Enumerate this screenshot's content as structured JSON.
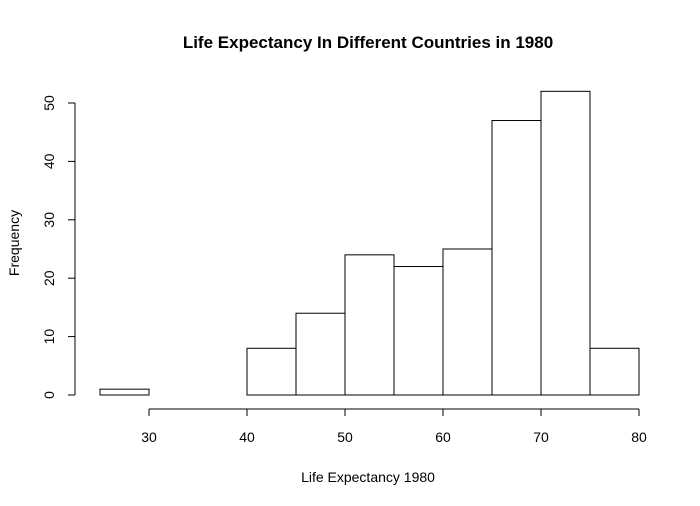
{
  "chart_data": {
    "type": "bar",
    "title": "Life Expectancy In Different Countries in 1980",
    "xlabel": "Life Expectancy 1980",
    "ylabel": "Frequency",
    "bins": [
      {
        "start": 25,
        "end": 30,
        "count": 1
      },
      {
        "start": 30,
        "end": 35,
        "count": 0
      },
      {
        "start": 35,
        "end": 40,
        "count": 0
      },
      {
        "start": 40,
        "end": 45,
        "count": 8
      },
      {
        "start": 45,
        "end": 50,
        "count": 14
      },
      {
        "start": 50,
        "end": 55,
        "count": 24
      },
      {
        "start": 55,
        "end": 60,
        "count": 22
      },
      {
        "start": 60,
        "end": 65,
        "count": 25
      },
      {
        "start": 65,
        "end": 70,
        "count": 47
      },
      {
        "start": 70,
        "end": 75,
        "count": 52
      },
      {
        "start": 75,
        "end": 80,
        "count": 8
      }
    ],
    "x_ticks": [
      30,
      40,
      50,
      60,
      70,
      80
    ],
    "y_ticks": [
      0,
      10,
      20,
      30,
      40,
      50
    ],
    "xlim": [
      25,
      80
    ],
    "ylim": [
      0,
      52
    ],
    "grid": false,
    "colors": {
      "bar_fill": "#ffffff",
      "bar_stroke": "#000000"
    }
  }
}
